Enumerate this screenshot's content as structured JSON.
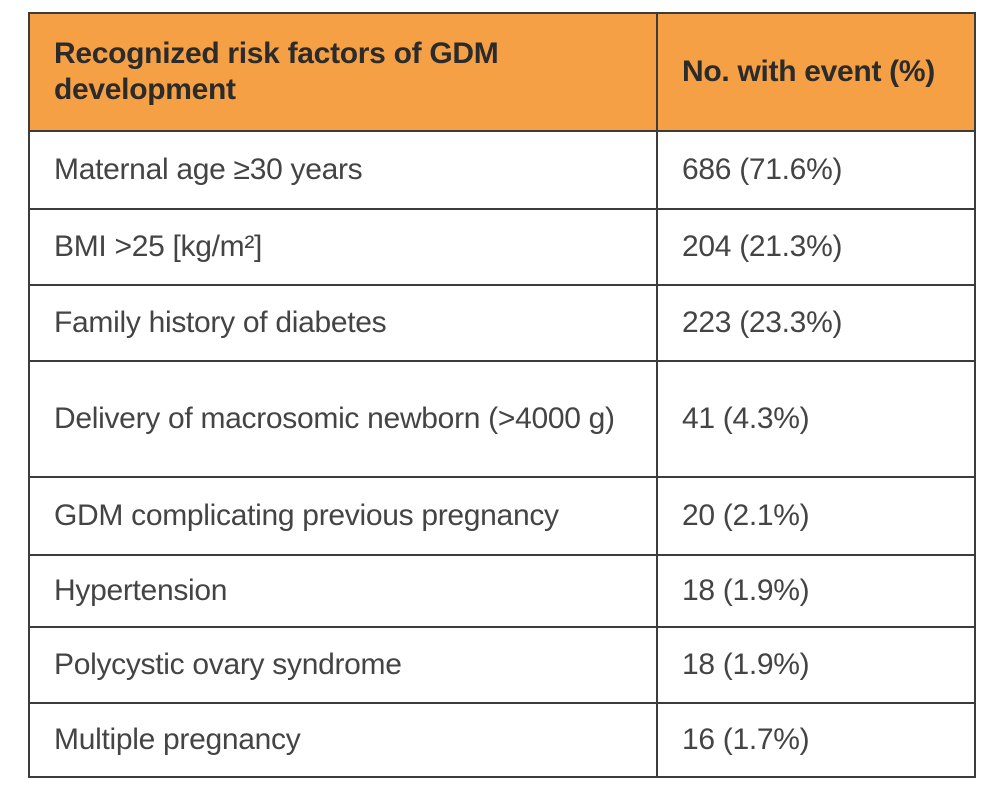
{
  "table": {
    "headers": [
      "Recognized risk factors of GDM development",
      "No. with event (%)"
    ],
    "rows": [
      {
        "factor": "Maternal age ≥30 years",
        "event": "686 (71.6%)"
      },
      {
        "factor": "BMI >25 [kg/m²]",
        "event": "204 (21.3%)"
      },
      {
        "factor": "Family history of diabetes",
        "event": "223 (23.3%)"
      },
      {
        "factor": "Delivery of macrosomic newborn (>4000 g)",
        "event": "41 (4.3%)"
      },
      {
        "factor": "GDM complicating previous pregnancy",
        "event": "20 (2.1%)"
      },
      {
        "factor": "Hypertension",
        "event": "18 (1.9%)"
      },
      {
        "factor": "Polycystic ovary syndrome",
        "event": "18 (1.9%)"
      },
      {
        "factor": "Multiple pregnancy",
        "event": "16 (1.7%)"
      }
    ]
  },
  "colors": {
    "header_background": "#f6a045",
    "border": "#3c3c3c",
    "header_text": "#2b2b2b",
    "body_text": "#444444"
  }
}
